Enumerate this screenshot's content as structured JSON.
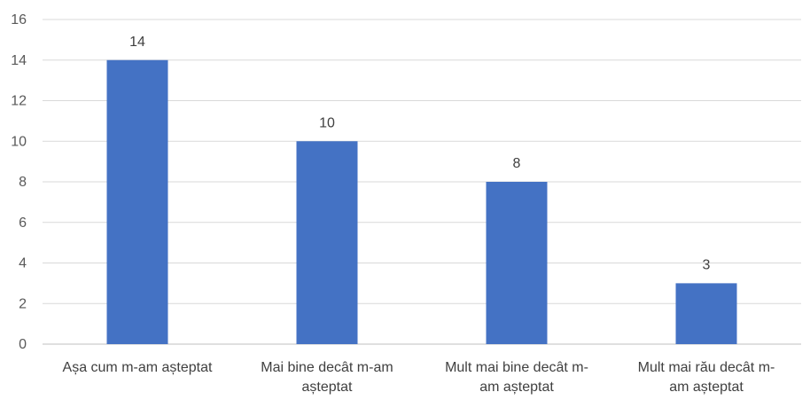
{
  "chart_data": {
    "type": "bar",
    "categories": [
      [
        "Așa cum m-am așteptat"
      ],
      [
        "Mai bine decât m-am",
        "așteptat"
      ],
      [
        "Mult mai bine decât m-",
        "am așteptat"
      ],
      [
        "Mult mai rău decât m-",
        "am așteptat"
      ]
    ],
    "values": [
      14,
      10,
      8,
      3
    ],
    "data_labels": [
      "14",
      "10",
      "8",
      "3"
    ],
    "y_ticks": [
      "0",
      "2",
      "4",
      "6",
      "8",
      "10",
      "12",
      "14",
      "16"
    ],
    "ylim": [
      0,
      16
    ],
    "grid": true,
    "legend": "none",
    "bar_color": "#4472C4",
    "title": "",
    "xlabel": "",
    "ylabel": ""
  }
}
